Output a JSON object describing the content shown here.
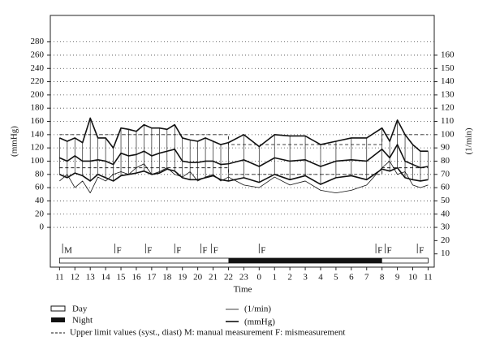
{
  "chart_data": {
    "type": "line",
    "ylabel": "(mmHg)",
    "y2label": "(1/min)",
    "xlabel": "Time",
    "xlim": [
      10.4,
      35.4
    ],
    "xticks": [
      11,
      12,
      13,
      14,
      15,
      16,
      17,
      18,
      19,
      20,
      21,
      22,
      23,
      {
        "value": 24,
        "label": "0"
      },
      {
        "value": 25,
        "label": "1"
      },
      {
        "value": 26,
        "label": "2"
      },
      {
        "value": 27,
        "label": "3"
      },
      {
        "value": 28,
        "label": "4"
      },
      {
        "value": 29,
        "label": "5"
      },
      {
        "value": 30,
        "label": "6"
      },
      {
        "value": 31,
        "label": "7"
      },
      {
        "value": 32,
        "label": "8"
      },
      {
        "value": 33,
        "label": "9"
      },
      {
        "value": 34,
        "label": "10"
      },
      {
        "value": 35,
        "label": "11"
      }
    ],
    "ylim": [
      -60,
      320
    ],
    "yticks": [
      0,
      20,
      40,
      60,
      80,
      100,
      120,
      140,
      160,
      180,
      200,
      220,
      240,
      260,
      280
    ],
    "y2lim": [
      0,
      190
    ],
    "y2ticks": [
      10,
      20,
      30,
      40,
      50,
      60,
      70,
      80,
      90,
      100,
      110,
      120,
      130,
      140,
      150,
      160
    ],
    "grid": true,
    "x": [
      11,
      11.5,
      12,
      12.5,
      13,
      13.5,
      14,
      14.5,
      15,
      15.5,
      16,
      16.5,
      17,
      17.5,
      18,
      18.5,
      19,
      19.5,
      20,
      20.5,
      21,
      21.5,
      22,
      23,
      24,
      25,
      26,
      27,
      28,
      29,
      30,
      31,
      32,
      32.5,
      33,
      33.5,
      34,
      34.5,
      35
    ],
    "series": [
      {
        "name": "(mmHg)",
        "color": "#111111",
        "width": 1.6,
        "values": [
          135,
          130,
          135,
          128,
          165,
          135,
          135,
          120,
          150,
          148,
          145,
          155,
          150,
          150,
          148,
          155,
          135,
          132,
          130,
          135,
          130,
          125,
          128,
          140,
          122,
          140,
          138,
          138,
          125,
          130,
          135,
          135,
          150,
          130,
          162,
          140,
          125,
          115,
          115
        ]
      },
      {
        "color": "#111111",
        "width": 1.6,
        "values": [
          105,
          100,
          108,
          100,
          100,
          102,
          100,
          95,
          112,
          108,
          110,
          115,
          108,
          112,
          115,
          118,
          100,
          98,
          98,
          100,
          100,
          95,
          96,
          102,
          92,
          105,
          100,
          102,
          92,
          100,
          102,
          100,
          118,
          105,
          125,
          100,
          95,
          90,
          92
        ]
      },
      {
        "color": "#111111",
        "width": 1.6,
        "values": [
          80,
          75,
          82,
          78,
          70,
          80,
          75,
          70,
          78,
          80,
          82,
          85,
          80,
          82,
          88,
          85,
          75,
          72,
          72,
          75,
          78,
          72,
          70,
          75,
          68,
          80,
          72,
          78,
          65,
          75,
          78,
          72,
          88,
          85,
          90,
          75,
          72,
          70,
          72
        ]
      },
      {
        "name": "(1/min)",
        "color": "#111111",
        "width": 0.8,
        "axis": "y2",
        "values": [
          65,
          70,
          60,
          65,
          56,
          68,
          65,
          70,
          72,
          70,
          75,
          78,
          70,
          72,
          75,
          70,
          68,
          72,
          65,
          68,
          70,
          65,
          68,
          62,
          60,
          68,
          62,
          65,
          58,
          56,
          58,
          62,
          75,
          80,
          70,
          72,
          62,
          60,
          62
        ]
      }
    ],
    "upper_limits": {
      "x": [
        11,
        22,
        22,
        32,
        32,
        35
      ],
      "systolic": [
        140,
        140,
        125,
        125,
        140,
        140
      ],
      "diastolic": [
        90,
        90,
        80,
        80,
        90,
        90
      ]
    },
    "markers": [
      {
        "x": 11.2,
        "label": "M"
      },
      {
        "x": 14.6,
        "label": "F"
      },
      {
        "x": 16.6,
        "label": "F"
      },
      {
        "x": 18.5,
        "label": "F"
      },
      {
        "x": 20.2,
        "label": "F"
      },
      {
        "x": 20.9,
        "label": "F"
      },
      {
        "x": 24.0,
        "label": "F"
      },
      {
        "x": 31.6,
        "label": "F"
      },
      {
        "x": 32.2,
        "label": "F"
      },
      {
        "x": 34.3,
        "label": "F"
      }
    ],
    "day_night_bar": {
      "night_start": 22,
      "night_end": 32
    },
    "legend": {
      "day": "Day",
      "night": "Night",
      "limits": "Upper limit values (syst., diast) M: manual measurement F: mismeasurement"
    }
  }
}
